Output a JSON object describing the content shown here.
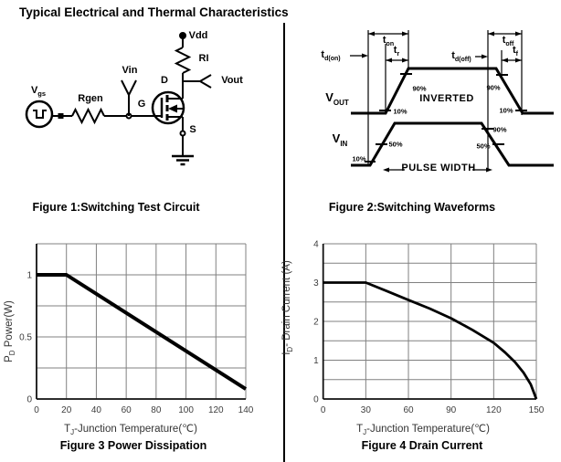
{
  "title": "Typical Electrical and Thermal Characteristics",
  "colors": {
    "grid": "#808080",
    "axis": "#111111",
    "curve": "#000000",
    "divider": "#000000"
  },
  "figure1": {
    "caption": "Figure 1:Switching Test Circuit",
    "labels": {
      "vgs": {
        "base": "V",
        "sub": "gs"
      },
      "rgen": "Rgen",
      "vin": "Vin",
      "gate": "G",
      "drain": "D",
      "source": "S",
      "vdd": "Vdd",
      "rl": "RI",
      "vout": "Vout"
    }
  },
  "figure2": {
    "caption": "Figure 2:Switching Waveforms",
    "labels": {
      "td_on": {
        "base": "t",
        "sub": "d(on)"
      },
      "t_on": {
        "base": "t",
        "sub": "on"
      },
      "t_r": {
        "base": "t",
        "sub": "r"
      },
      "td_off": {
        "base": "t",
        "sub": "d(off)"
      },
      "t_off": {
        "base": "t",
        "sub": "off"
      },
      "t_f": {
        "base": "t",
        "sub": "f"
      },
      "vout": {
        "base": "V",
        "sub": "OUT"
      },
      "vin": {
        "base": "V",
        "sub": "IN"
      },
      "inverted": "INVERTED",
      "pulse_width": "PULSE WIDTH",
      "out_rise_90": "90%",
      "out_rise_10": "10%",
      "out_fall_90": "90%",
      "out_fall_10": "10%",
      "in_rise_10": "10%",
      "in_rise_50": "50%",
      "in_fall_50": "50%",
      "in_fall_90": "90%"
    }
  },
  "chart_data": [
    {
      "type": "line",
      "title": "Figure 3 Power Dissipation",
      "xlabel": {
        "base": "T",
        "sub": "J",
        "rest": "-Junction Temperature(℃)"
      },
      "ylabel": {
        "base": "P",
        "sub": "D",
        "rest": " Power(W)"
      },
      "xlim": [
        0,
        140
      ],
      "ylim": [
        0,
        1.25
      ],
      "y_grid_step": 0.25,
      "x_ticks": [
        0,
        20,
        40,
        60,
        80,
        100,
        120,
        140
      ],
      "y_ticks": [
        {
          "v": 0,
          "label": "0"
        },
        {
          "v": 0.5,
          "label": "0.5"
        },
        {
          "v": 1,
          "label": "1"
        }
      ],
      "points": [
        [
          0,
          1
        ],
        [
          20,
          1
        ],
        [
          140,
          0.08
        ]
      ],
      "grid": true,
      "legend": "none"
    },
    {
      "type": "line",
      "title": "Figure 4 Drain Current",
      "xlabel": {
        "base": "T",
        "sub": "J",
        "rest": "-Junction Temperature(℃)"
      },
      "ylabel": {
        "base": "I",
        "sub": "D",
        "rest": "- Drain Current (A)"
      },
      "xlim": [
        0,
        150
      ],
      "ylim": [
        0,
        4
      ],
      "y_grid_step": 0.5,
      "x_ticks": [
        0,
        30,
        60,
        90,
        120,
        150
      ],
      "y_ticks": [
        {
          "v": 0,
          "label": "0"
        },
        {
          "v": 1,
          "label": "1"
        },
        {
          "v": 2,
          "label": "2"
        },
        {
          "v": 3,
          "label": "3"
        },
        {
          "v": 4,
          "label": "4"
        }
      ],
      "points": [
        [
          0,
          3
        ],
        [
          30,
          3
        ],
        [
          45,
          2.78
        ],
        [
          60,
          2.55
        ],
        [
          75,
          2.33
        ],
        [
          90,
          2.08
        ],
        [
          105,
          1.78
        ],
        [
          120,
          1.45
        ],
        [
          128,
          1.2
        ],
        [
          135,
          0.95
        ],
        [
          141,
          0.68
        ],
        [
          146,
          0.38
        ],
        [
          150,
          0
        ]
      ],
      "grid": true,
      "legend": "none"
    }
  ]
}
